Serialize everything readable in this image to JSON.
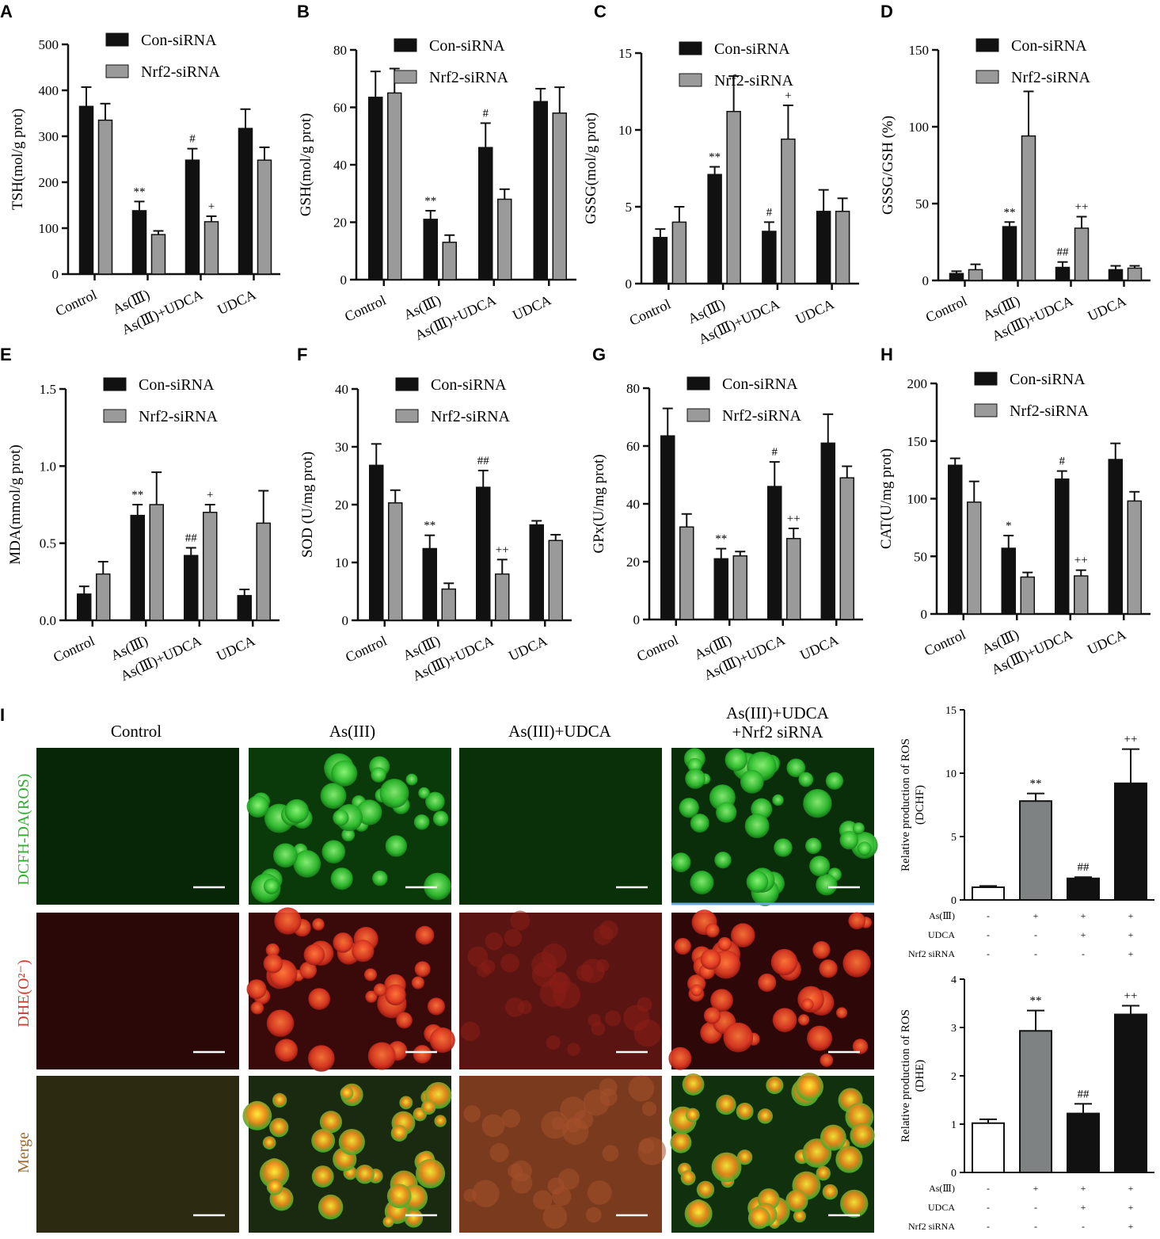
{
  "legend": {
    "a": "Con-siRNA",
    "b": "Nrf2-siRNA"
  },
  "colors": {
    "black": "#111111",
    "gray": "#9a9a9a",
    "dcf_gray": "#7f8282",
    "white": "#ffffff",
    "green": "#2fae2f",
    "red": "#d23a2a",
    "merge": "#9c6a30",
    "blue_line": "#6aa8e0"
  },
  "categories": [
    "Control",
    "As(Ⅲ)",
    "As(Ⅲ)+UDCA",
    "UDCA"
  ],
  "chart_data": [
    {
      "id": "A",
      "type": "bar",
      "ylabel": "TSH(mol/g prot)",
      "ylim": [
        0,
        500
      ],
      "ticks": [
        0,
        100,
        200,
        300,
        400,
        500
      ],
      "categories": [
        "Control",
        "As(Ⅲ)",
        "As(Ⅲ)+UDCA",
        "UDCA"
      ],
      "series": [
        {
          "name": "Con-siRNA",
          "values": [
            365,
            138,
            248,
            317
          ],
          "errors": [
            42,
            20,
            25,
            42
          ],
          "marks": [
            "",
            "**",
            "#",
            ""
          ]
        },
        {
          "name": "Nrf2-siRNA",
          "values": [
            335,
            86,
            114,
            248
          ],
          "errors": [
            36,
            8,
            12,
            28
          ],
          "marks": [
            "",
            "",
            "+",
            ""
          ]
        }
      ]
    },
    {
      "id": "B",
      "type": "bar",
      "ylabel": "GSH(mol/g prot)",
      "ylim": [
        0,
        80
      ],
      "ticks": [
        0,
        20,
        40,
        60,
        80
      ],
      "categories": [
        "Control",
        "As(Ⅲ)",
        "As(Ⅲ)+UDCA",
        "UDCA"
      ],
      "series": [
        {
          "name": "Con-siRNA",
          "values": [
            63.5,
            21,
            46,
            62
          ],
          "errors": [
            9,
            3,
            8.5,
            4.5
          ],
          "marks": [
            "",
            "**",
            "#",
            ""
          ]
        },
        {
          "name": "Nrf2-siRNA",
          "values": [
            65,
            13,
            28,
            58
          ],
          "errors": [
            8.5,
            2.5,
            3.5,
            9
          ],
          "marks": [
            "",
            "",
            "",
            ""
          ]
        }
      ]
    },
    {
      "id": "C",
      "type": "bar",
      "ylabel": "GSSG(mol/g prot)",
      "ylim": [
        0,
        15
      ],
      "ticks": [
        0,
        5,
        10,
        15
      ],
      "categories": [
        "Control",
        "As(Ⅲ)",
        "As(Ⅲ)+UDCA",
        "UDCA"
      ],
      "series": [
        {
          "name": "Con-siRNA",
          "values": [
            3.0,
            7.1,
            3.4,
            4.7
          ],
          "errors": [
            0.55,
            0.5,
            0.6,
            1.4
          ],
          "marks": [
            "",
            "**",
            "#",
            ""
          ]
        },
        {
          "name": "Nrf2-siRNA",
          "values": [
            4.0,
            11.2,
            9.4,
            4.7
          ],
          "errors": [
            1.0,
            2.3,
            2.2,
            0.85
          ],
          "marks": [
            "",
            "",
            "+",
            ""
          ]
        }
      ]
    },
    {
      "id": "D",
      "type": "bar",
      "ylabel": "GSSG/GSH (%)",
      "ylim": [
        0,
        150
      ],
      "ticks": [
        0,
        50,
        100,
        150
      ],
      "categories": [
        "Control",
        "As(Ⅲ)",
        "As(Ⅲ)+UDCA",
        "UDCA"
      ],
      "series": [
        {
          "name": "Con-siRNA",
          "values": [
            4.5,
            35,
            8.5,
            7
          ],
          "errors": [
            1.5,
            3,
            3.5,
            2.5
          ],
          "marks": [
            "",
            "**",
            "##",
            ""
          ]
        },
        {
          "name": "Nrf2-siRNA",
          "values": [
            7,
            94,
            34,
            8
          ],
          "errors": [
            3.5,
            29,
            7.5,
            1.5
          ],
          "marks": [
            "",
            "",
            "++",
            ""
          ]
        }
      ]
    },
    {
      "id": "E",
      "type": "bar",
      "ylabel": "MDA(mmol/g prot)",
      "ylim": [
        0,
        1.5
      ],
      "ticks": [
        "0.0",
        "0.5",
        "1.0",
        "1.5"
      ],
      "categories": [
        "Control",
        "As(Ⅲ)",
        "As(Ⅲ)+UDCA",
        "UDCA"
      ],
      "series": [
        {
          "name": "Con-siRNA",
          "values": [
            0.17,
            0.68,
            0.42,
            0.16
          ],
          "errors": [
            0.05,
            0.07,
            0.05,
            0.04
          ],
          "marks": [
            "",
            "**",
            "##",
            ""
          ]
        },
        {
          "name": "Nrf2-siRNA",
          "values": [
            0.3,
            0.75,
            0.7,
            0.63
          ],
          "errors": [
            0.08,
            0.21,
            0.05,
            0.21
          ],
          "marks": [
            "",
            "",
            "+",
            ""
          ]
        }
      ]
    },
    {
      "id": "F",
      "type": "bar",
      "ylabel": "SOD (U/mg prot)",
      "ylim": [
        0,
        40
      ],
      "ticks": [
        0,
        10,
        20,
        30,
        40
      ],
      "categories": [
        "Control",
        "As(Ⅲ)",
        "As(Ⅲ)+UDCA",
        "UDCA"
      ],
      "series": [
        {
          "name": "Con-siRNA",
          "values": [
            26.8,
            12.4,
            23,
            16.5
          ],
          "errors": [
            3.7,
            2.3,
            2.9,
            0.7
          ],
          "marks": [
            "",
            "**",
            "##",
            ""
          ]
        },
        {
          "name": "Nrf2-siRNA",
          "values": [
            20.3,
            5.4,
            8,
            13.8
          ],
          "errors": [
            2.2,
            1.0,
            2.5,
            1.0
          ],
          "marks": [
            "",
            "",
            "++",
            ""
          ]
        }
      ]
    },
    {
      "id": "G",
      "type": "bar",
      "ylabel": "GPx(U/mg prot)",
      "ylim": [
        0,
        80
      ],
      "ticks": [
        0,
        20,
        40,
        60,
        80
      ],
      "categories": [
        "Control",
        "As(Ⅲ)",
        "As(Ⅲ)+UDCA",
        "UDCA"
      ],
      "series": [
        {
          "name": "Con-siRNA",
          "values": [
            63.5,
            21,
            46,
            61
          ],
          "errors": [
            9.5,
            3.5,
            8.5,
            10
          ],
          "marks": [
            "",
            "**",
            "#",
            ""
          ]
        },
        {
          "name": "Nrf2-siRNA",
          "values": [
            32,
            22,
            28,
            49
          ],
          "errors": [
            4.5,
            1.5,
            3.5,
            4
          ],
          "marks": [
            "",
            "",
            "++",
            ""
          ]
        }
      ]
    },
    {
      "id": "H",
      "type": "bar",
      "ylabel": "CAT(U/mg prot)",
      "ylim": [
        0,
        200
      ],
      "ticks": [
        0,
        50,
        100,
        150,
        200
      ],
      "categories": [
        "Control",
        "As(Ⅲ)",
        "As(Ⅲ)+UDCA",
        "UDCA"
      ],
      "series": [
        {
          "name": "Con-siRNA",
          "values": [
            129,
            57,
            117,
            134
          ],
          "errors": [
            6,
            11,
            7,
            14
          ],
          "marks": [
            "",
            "*",
            "#",
            ""
          ]
        },
        {
          "name": "Nrf2-siRNA",
          "values": [
            97,
            32,
            33,
            98
          ],
          "errors": [
            18,
            4,
            5,
            8
          ],
          "marks": [
            "",
            "",
            "++",
            ""
          ]
        }
      ]
    },
    {
      "id": "I-DCFHF",
      "type": "bar",
      "ylabel": [
        "Relative production of ROS",
        "(DCHF)"
      ],
      "ylim": [
        0,
        15
      ],
      "ticks": [
        0,
        5,
        10,
        15
      ],
      "values": [
        1.0,
        7.8,
        1.7,
        9.2
      ],
      "errors": [
        0.1,
        0.6,
        0.1,
        2.7
      ],
      "marks": [
        "",
        "**",
        "##",
        "++"
      ],
      "fills": [
        "white",
        "dcf_gray",
        "black",
        "black"
      ],
      "table": {
        "rows": [
          {
            "label": "As(Ⅲ)",
            "values": [
              "-",
              "+",
              "+",
              "+"
            ]
          },
          {
            "label": "UDCA",
            "values": [
              "-",
              "-",
              "+",
              "+"
            ]
          },
          {
            "label": "Nrf2 siRNA",
            "values": [
              "-",
              "-",
              "-",
              "+"
            ]
          }
        ]
      }
    },
    {
      "id": "I-DHE",
      "type": "bar",
      "ylabel": [
        "Relative production of ROS",
        "(DHE)"
      ],
      "ylim": [
        0,
        4
      ],
      "ticks": [
        0,
        1,
        2,
        3,
        4
      ],
      "values": [
        1.02,
        2.93,
        1.22,
        3.27
      ],
      "errors": [
        0.08,
        0.42,
        0.2,
        0.18
      ],
      "marks": [
        "",
        "**",
        "##",
        "++"
      ],
      "fills": [
        "white",
        "dcf_gray",
        "black",
        "black"
      ],
      "table": {
        "rows": [
          {
            "label": "As(Ⅲ)",
            "values": [
              "-",
              "+",
              "+",
              "+"
            ]
          },
          {
            "label": "UDCA",
            "values": [
              "-",
              "-",
              "+",
              "+"
            ]
          },
          {
            "label": "Nrf2 siRNA",
            "values": [
              "-",
              "-",
              "-",
              "+"
            ]
          }
        ]
      }
    }
  ],
  "panel_I": {
    "letter": "I",
    "columns": [
      "Control",
      "As(III)",
      "As(III)+UDCA",
      "As(III)+UDCA",
      "+Nrf2 siRNA"
    ],
    "rows": [
      "DCFH-DA(ROS)",
      "DHE(O²⁻)",
      "Merge"
    ]
  }
}
